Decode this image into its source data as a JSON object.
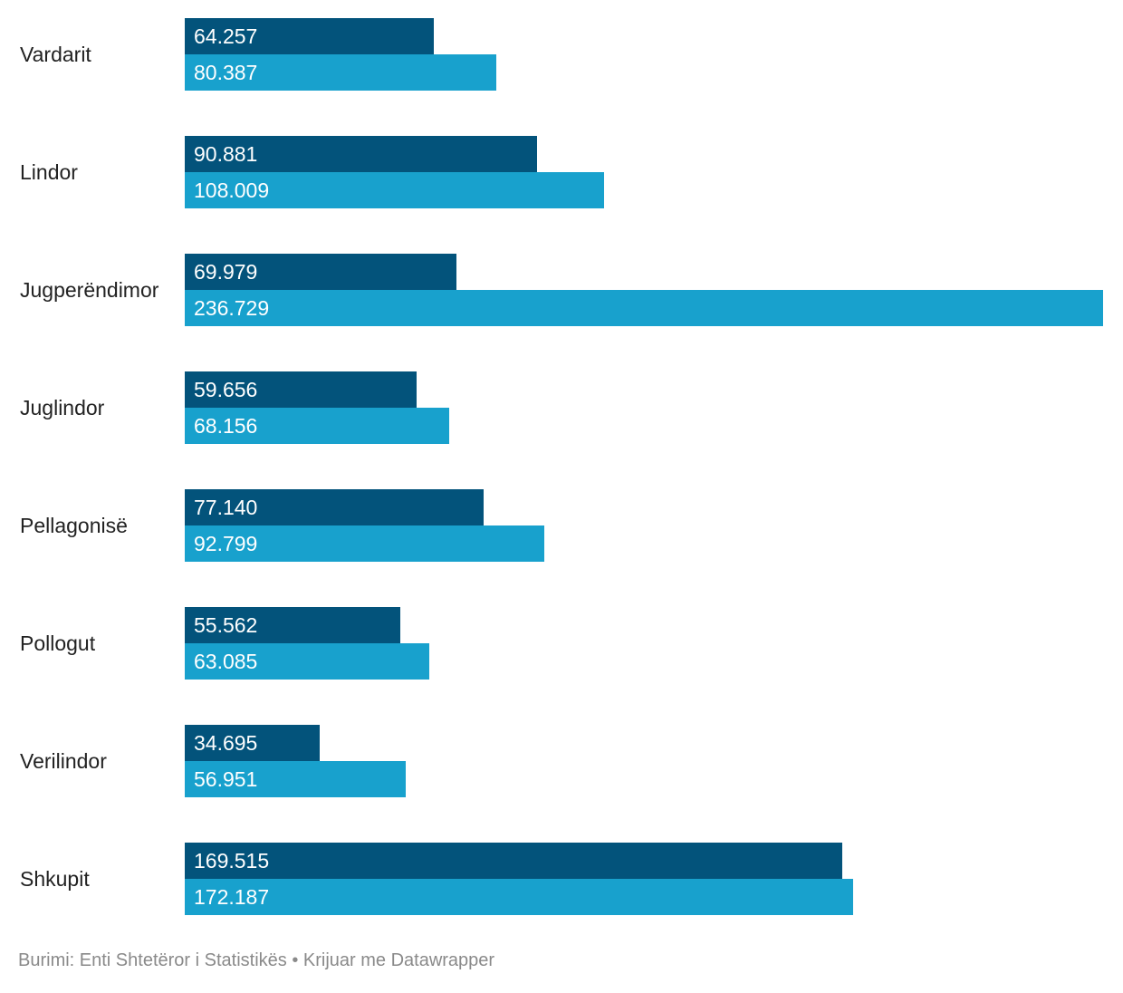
{
  "chart_data": {
    "type": "bar",
    "orientation": "horizontal",
    "categories": [
      "Vardarit",
      "Lindor",
      "Jugperëndimor",
      "Juglindor",
      "Pellagonisë",
      "Pollogut",
      "Verilindor",
      "Shkupit"
    ],
    "series": [
      {
        "values": [
          64257,
          90881,
          69979,
          59656,
          77140,
          55562,
          34695,
          169515
        ],
        "labels": [
          "64.257",
          "90.881",
          "69.979",
          "59.656",
          "77.140",
          "55.562",
          "34.695",
          "169.515"
        ]
      },
      {
        "values": [
          80387,
          108009,
          236729,
          68156,
          92799,
          63085,
          56951,
          172187
        ],
        "labels": [
          "80.387",
          "108.009",
          "236.729",
          "68.156",
          "92.799",
          "63.085",
          "56.951",
          "172.187"
        ]
      }
    ],
    "xlim": [
      0,
      236729
    ],
    "grid": false,
    "legend": "none",
    "colors": [
      "#03537b",
      "#18a1cd"
    ]
  },
  "footer": {
    "text": "Burimi: Enti Shtetëror i Statistikës • Krijuar me Datawrapper"
  }
}
